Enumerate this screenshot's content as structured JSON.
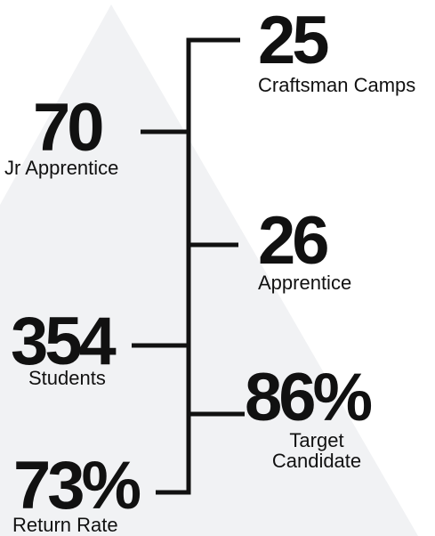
{
  "stats": [
    {
      "value": "25",
      "label": "Craftsman Camps"
    },
    {
      "value": "70",
      "label": "Jr Apprentice"
    },
    {
      "value": "26",
      "label": "Apprentice"
    },
    {
      "value": "354",
      "label": "Students"
    },
    {
      "value": "86%",
      "label": "Target Candidate"
    },
    {
      "value": "73%",
      "label": "Return Rate"
    }
  ]
}
